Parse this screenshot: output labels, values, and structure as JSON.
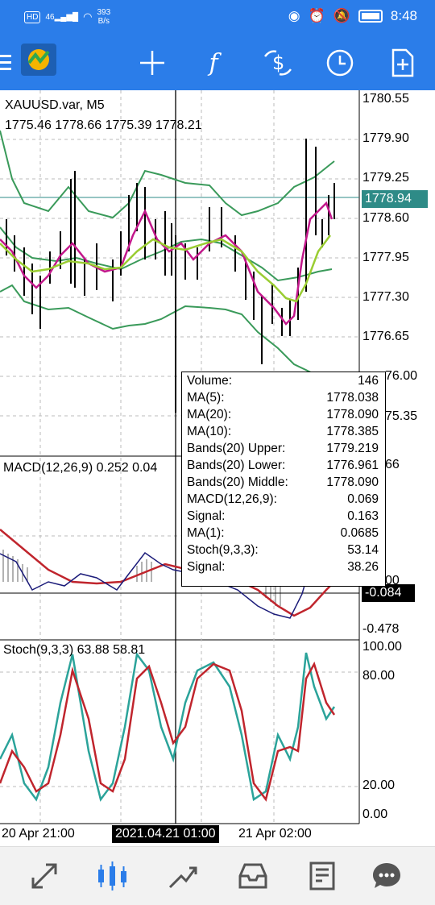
{
  "status_bar": {
    "hd": "HD",
    "signal": "46",
    "speed": "393",
    "speed_unit": "B/s",
    "time": "8:48"
  },
  "toolbar": {
    "menu": "menu-icon",
    "logo": "metatrader-logo-icon",
    "items": [
      "crosshair-icon",
      "indicators-icon",
      "trade-icon",
      "period-icon",
      "add-object-icon"
    ]
  },
  "chart": {
    "symbol": "XAUUSD.var, M5",
    "ohlc": "1775.46 1778.66 1775.39 1778.21",
    "price_axis": [
      "1780.55",
      "1779.90",
      "1779.25",
      "1778.60",
      "1777.95",
      "1777.30",
      "1776.65",
      "76.00",
      "75.35"
    ],
    "current_price": "1778.94",
    "macd_title": "MACD(12,26,9) 0.252 0.04",
    "macd_axis_top": "66",
    "macd_axis_mid": "00",
    "macd_axis_bottom": "-0.478",
    "macd_current": "-0.084",
    "stoch_title": "Stoch(9,3,3) 63.88 58.81",
    "stoch_axis": [
      "100.00",
      "80.00",
      "20.00",
      "0.00"
    ],
    "time_axis": {
      "left": "20 Apr 21:00",
      "cursor": "2021.04.21 01:00",
      "right": "21 Apr 02:00"
    }
  },
  "tooltip": {
    "rows": [
      {
        "label": "Volume:",
        "value": "146"
      },
      {
        "label": "MA(5):",
        "value": "1778.038"
      },
      {
        "label": "MA(20):",
        "value": "1778.090"
      },
      {
        "label": "MA(10):",
        "value": "1778.385"
      },
      {
        "label": "Bands(20) Upper:",
        "value": "1779.219"
      },
      {
        "label": "Bands(20) Lower:",
        "value": "1776.961"
      },
      {
        "label": "Bands(20) Middle:",
        "value": "1778.090"
      },
      {
        "label": "MACD(12,26,9):",
        "value": "0.069"
      },
      {
        "label": "Signal:",
        "value": "0.163"
      },
      {
        "label": "MA(1):",
        "value": "0.0685"
      },
      {
        "label": "Stoch(9,3,3):",
        "value": "53.14"
      },
      {
        "label": "Signal:",
        "value": "38.26"
      }
    ]
  },
  "bottom_nav": [
    "quotes-icon",
    "chart-icon",
    "trade-icon",
    "history-icon",
    "news-icon",
    "chat-icon"
  ],
  "colors": {
    "bar": "#2b7de9",
    "bands": "#3a9a5a",
    "ma_fast": "#c2188b",
    "ma_slow": "#9acd32",
    "stoch_main": "#2ba39a",
    "stoch_signal": "#c0252d",
    "macd_signal": "#c0252d",
    "macd_line": "#1c1c7a"
  }
}
